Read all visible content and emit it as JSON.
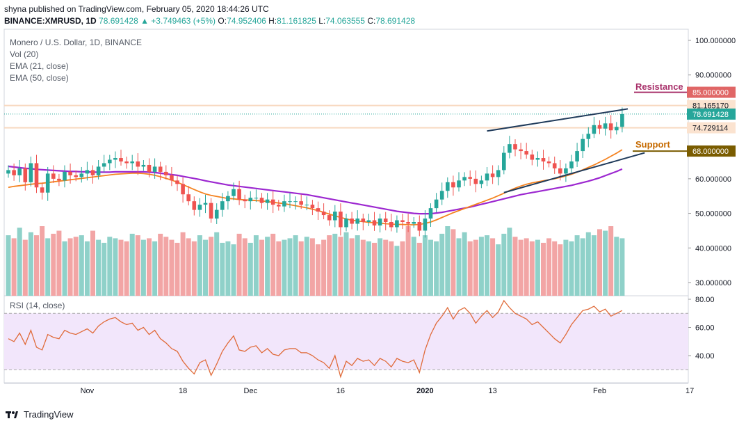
{
  "header": {
    "published": "shyna published on TradingView.com, February 05, 2020 18:44:26 UTC",
    "symbol": "BINANCE:XMRUSD, 1D",
    "change": "78.691428 ▲ +3.749463 (+5%)",
    "o_label": "O:",
    "o": "74.952406",
    "h_label": "H:",
    "h": "81.161825",
    "l_label": "L:",
    "l": "74.063555",
    "c_label": "C:",
    "c": "78.691428"
  },
  "legend": {
    "title": "Monero / U.S. Dollar, 1D, BINANCE",
    "vol": "Vol (20)",
    "ema21": "EMA (21, close)",
    "ema50": "EMA (50, close)",
    "rsi": "RSI (14, close)"
  },
  "annotations": {
    "resistance": "Resistance",
    "support": "Support"
  },
  "footer": {
    "brand": "TradingView"
  },
  "colors": {
    "up": "#26a69a",
    "down": "#ef5350",
    "vol_up": "#8fd1c9",
    "vol_down": "#f2a5a5",
    "ema21": "#f5821f",
    "ema50": "#9c27d0",
    "rsi": "#e06b3a",
    "rsi_band": "#f2e6fb",
    "trend": "#1f3a5a",
    "resistance": "#a8306a",
    "support": "#c66a00",
    "res_box": "#e06666",
    "sup_box": "#7a5c00"
  },
  "chart_data": {
    "type": "candlestick",
    "y_ticks": [
      "100.000000",
      "90.000000",
      "60.000000",
      "50.000000",
      "40.000000",
      "30.000000"
    ],
    "price_labels": [
      {
        "text": "85.000000",
        "value": 85.0,
        "kind": "resistance"
      },
      {
        "text": "81.165170",
        "value": 81.16517,
        "kind": "plain"
      },
      {
        "text": "78.691428",
        "value": 78.691428,
        "kind": "last"
      },
      {
        "text": "74.729114",
        "value": 74.729114,
        "kind": "plain"
      },
      {
        "text": "68.000000",
        "value": 68.0,
        "kind": "support"
      }
    ],
    "rsi_ticks": [
      "80.00",
      "60.00",
      "40.00"
    ],
    "x_labels": [
      {
        "text": "Nov",
        "idx": 14
      },
      {
        "text": "18",
        "idx": 31
      },
      {
        "text": "Dec",
        "idx": 43
      },
      {
        "text": "16",
        "idx": 59
      },
      {
        "text": "2020",
        "idx": 74
      },
      {
        "text": "13",
        "idx": 86
      },
      {
        "text": "Feb",
        "idx": 105
      },
      {
        "text": "17",
        "idx": 121
      }
    ],
    "resistance_level": 85.0,
    "support_level": 68.0,
    "hlines": [
      81.16517,
      74.729114
    ],
    "trendlines": [
      {
        "from": [
          85,
          73.8
        ],
        "to": [
          110,
          80.2
        ]
      },
      {
        "from": [
          88,
          56.0
        ],
        "to": [
          113,
          67.5
        ]
      }
    ],
    "close": [
      62.5,
      61.0,
      63.0,
      59.0,
      64.5,
      57.5,
      56.0,
      61.5,
      60.0,
      59.5,
      62.0,
      61.0,
      60.5,
      61.5,
      62.5,
      61.0,
      63.5,
      64.5,
      65.5,
      66.0,
      65.0,
      64.5,
      65.0,
      63.5,
      64.0,
      62.0,
      63.5,
      62.0,
      61.0,
      59.5,
      58.5,
      55.5,
      53.5,
      51.0,
      52.5,
      53.0,
      48.5,
      51.0,
      53.5,
      55.0,
      57.0,
      54.0,
      53.5,
      54.5,
      54.5,
      53.0,
      54.0,
      52.5,
      52.0,
      53.5,
      53.5,
      53.5,
      52.5,
      52.5,
      51.5,
      50.5,
      49.5,
      48.0,
      50.5,
      46.0,
      48.5,
      47.0,
      48.5,
      47.5,
      48.0,
      46.5,
      48.5,
      47.5,
      46.0,
      48.0,
      47.5,
      47.0,
      47.5,
      45.0,
      48.5,
      51.5,
      54.0,
      56.5,
      59.0,
      57.5,
      59.5,
      60.5,
      60.0,
      58.5,
      59.5,
      61.5,
      60.5,
      62.5,
      67.5,
      70.0,
      68.5,
      68.0,
      67.0,
      65.5,
      66.0,
      65.0,
      64.5,
      63.0,
      61.5,
      63.0,
      65.0,
      68.0,
      71.5,
      73.0,
      75.5,
      74.5,
      76.0,
      74.0,
      75.0,
      78.7
    ],
    "open": [
      61.5,
      62.5,
      61.0,
      63.0,
      59.0,
      64.5,
      57.5,
      56.0,
      61.5,
      60.0,
      59.5,
      62.0,
      61.0,
      60.5,
      61.5,
      62.5,
      61.0,
      63.5,
      64.5,
      65.5,
      66.0,
      65.0,
      64.5,
      65.0,
      63.5,
      64.0,
      62.0,
      63.5,
      62.0,
      61.0,
      59.5,
      58.5,
      55.5,
      53.5,
      51.0,
      52.5,
      53.0,
      48.5,
      51.0,
      53.5,
      55.0,
      57.0,
      54.0,
      53.5,
      54.5,
      54.5,
      53.0,
      54.0,
      52.5,
      52.0,
      53.5,
      53.5,
      53.5,
      52.5,
      52.5,
      51.5,
      50.5,
      49.5,
      48.0,
      50.5,
      46.0,
      48.5,
      47.0,
      48.5,
      47.5,
      48.0,
      46.5,
      48.5,
      47.5,
      46.0,
      48.0,
      47.5,
      47.0,
      47.5,
      45.0,
      48.5,
      51.5,
      54.0,
      56.5,
      59.0,
      57.5,
      59.5,
      60.5,
      60.0,
      58.5,
      59.5,
      61.5,
      60.5,
      62.5,
      67.5,
      70.0,
      68.5,
      68.0,
      67.0,
      65.5,
      66.0,
      65.0,
      64.5,
      63.0,
      61.5,
      63.0,
      65.0,
      68.0,
      71.5,
      73.0,
      75.5,
      74.5,
      76.0,
      74.0,
      75.0
    ],
    "volume": [
      40,
      38,
      45,
      37,
      42,
      40,
      46,
      38,
      41,
      43,
      36,
      38,
      39,
      40,
      36,
      43,
      37,
      35,
      39,
      38,
      37,
      36,
      41,
      40,
      37,
      38,
      36,
      41,
      39,
      37,
      35,
      42,
      38,
      36,
      40,
      37,
      39,
      42,
      35,
      36,
      34,
      41,
      38,
      35,
      40,
      37,
      39,
      41,
      36,
      37,
      38,
      40,
      36,
      39,
      38,
      34,
      37,
      40,
      41,
      39,
      42,
      38,
      40,
      37,
      36,
      35,
      38,
      37,
      36,
      33,
      36,
      46,
      39,
      35,
      40,
      37,
      36,
      41,
      46,
      44,
      38,
      42,
      36,
      37,
      39,
      40,
      38,
      34,
      41,
      45,
      39,
      37,
      38,
      36,
      37,
      35,
      38,
      36,
      34,
      37,
      36,
      40,
      38,
      42,
      40,
      44,
      43,
      46,
      39,
      38
    ],
    "ema21": [
      57.5,
      57.8,
      58.0,
      58.2,
      58.4,
      58.6,
      58.7,
      58.9,
      59.1,
      59.3,
      59.5,
      59.7,
      59.9,
      60.1,
      60.3,
      60.5,
      60.7,
      60.9,
      61.1,
      61.3,
      61.4,
      61.5,
      61.6,
      61.6,
      61.5,
      61.3,
      61.0,
      60.6,
      60.1,
      59.6,
      59.0,
      58.3,
      57.6,
      56.9,
      56.2,
      55.6,
      55.2,
      54.9,
      54.6,
      54.3,
      54.2,
      54.0,
      53.9,
      53.8,
      53.7,
      53.6,
      53.4,
      53.2,
      53.0,
      52.8,
      52.5,
      52.2,
      51.9,
      51.6,
      51.2,
      50.8,
      50.3,
      49.8,
      49.3,
      48.8,
      48.4,
      48.0,
      47.8,
      47.6,
      47.4,
      47.3,
      47.2,
      47.0,
      46.9,
      46.8,
      46.8,
      46.7,
      46.7,
      46.8,
      47.1,
      47.5,
      48.1,
      48.8,
      49.5,
      50.2,
      50.8,
      51.4,
      52.0,
      52.6,
      53.2,
      53.8,
      54.4,
      55.1,
      55.8,
      56.6,
      57.3,
      57.9,
      58.4,
      58.8,
      59.1,
      59.4,
      59.7,
      60.0,
      60.4,
      60.8,
      61.3,
      61.9,
      62.6,
      63.3,
      64.0,
      64.8,
      65.6,
      66.5,
      67.4,
      68.4
    ],
    "ema50": [
      63.6,
      63.4,
      63.2,
      63.0,
      62.9,
      62.7,
      62.6,
      62.5,
      62.4,
      62.3,
      62.2,
      62.1,
      62.1,
      62.0,
      62.0,
      61.9,
      61.9,
      61.9,
      61.9,
      62.0,
      62.0,
      62.0,
      62.0,
      62.0,
      62.0,
      61.9,
      61.8,
      61.6,
      61.4,
      61.2,
      61.0,
      60.7,
      60.4,
      60.1,
      59.8,
      59.4,
      59.1,
      58.8,
      58.5,
      58.2,
      58.0,
      57.8,
      57.6,
      57.4,
      57.2,
      57.0,
      56.8,
      56.6,
      56.4,
      56.2,
      56.0,
      55.8,
      55.6,
      55.4,
      55.1,
      54.8,
      54.5,
      54.2,
      53.9,
      53.6,
      53.3,
      53.0,
      52.7,
      52.4,
      52.1,
      51.8,
      51.5,
      51.2,
      50.9,
      50.6,
      50.4,
      50.2,
      50.0,
      49.9,
      49.9,
      49.9,
      50.1,
      50.3,
      50.6,
      50.9,
      51.2,
      51.5,
      51.8,
      52.2,
      52.6,
      53.0,
      53.4,
      53.8,
      54.2,
      54.6,
      55.0,
      55.4,
      55.7,
      56.0,
      56.3,
      56.6,
      56.9,
      57.2,
      57.5,
      57.8,
      58.1,
      58.5,
      58.9,
      59.3,
      59.8,
      60.3,
      60.9,
      61.5,
      62.1,
      62.8
    ],
    "rsi": [
      52,
      50,
      56,
      48,
      58,
      46,
      44,
      55,
      53,
      52,
      58,
      56,
      55,
      57,
      59,
      56,
      61,
      64,
      66,
      67,
      64,
      62,
      63,
      58,
      60,
      55,
      58,
      52,
      49,
      45,
      43,
      36,
      31,
      27,
      35,
      37,
      26,
      34,
      43,
      49,
      54,
      44,
      43,
      46,
      47,
      42,
      45,
      41,
      40,
      44,
      45,
      45,
      42,
      42,
      40,
      37,
      35,
      31,
      40,
      25,
      36,
      33,
      38,
      36,
      37,
      33,
      38,
      36,
      32,
      38,
      36,
      35,
      37,
      28,
      44,
      55,
      63,
      68,
      74,
      66,
      72,
      74,
      70,
      63,
      68,
      72,
      67,
      71,
      79,
      74,
      70,
      68,
      66,
      62,
      64,
      60,
      56,
      52,
      49,
      55,
      62,
      67,
      72,
      73,
      75,
      71,
      73,
      68,
      70,
      72
    ]
  }
}
